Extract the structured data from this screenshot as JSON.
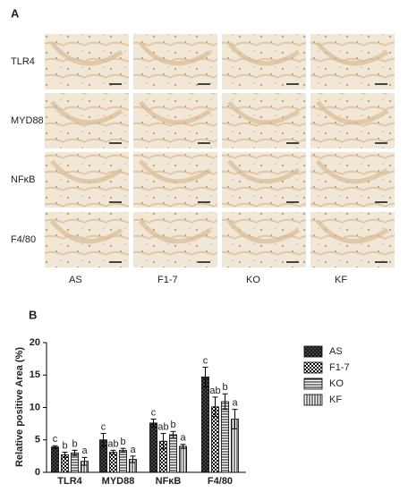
{
  "panel_labels": [
    "A",
    "B"
  ],
  "micrographs": {
    "row_labels": [
      "TLR4",
      "MYD88",
      "NFκB",
      "F4/80"
    ],
    "column_labels": [
      "AS",
      "F1-7",
      "KO",
      "KF"
    ]
  },
  "chart_data": {
    "type": "bar",
    "y_label": "Relative positive Area (%)",
    "categories": [
      "TLR4",
      "MYD88",
      "NFκB",
      "F4/80"
    ],
    "ylim": [
      0,
      20
    ],
    "yticks": [
      0,
      5,
      10,
      15,
      20
    ],
    "grid": false,
    "legend": "right",
    "series": [
      {
        "name": "AS",
        "color": "#000000",
        "pattern": "crosshatch",
        "values": [
          3.9,
          5.0,
          7.6,
          14.7
        ],
        "errors": [
          0.2,
          1.0,
          0.6,
          1.5
        ],
        "labels": [
          "c",
          "c",
          "c",
          "c"
        ]
      },
      {
        "name": "F1-7",
        "color": "#000000",
        "pattern": "checker",
        "values": [
          2.7,
          3.1,
          4.8,
          10.1
        ],
        "errors": [
          0.4,
          0.3,
          1.2,
          1.5
        ],
        "labels": [
          "b",
          "ab",
          "ab",
          "ab"
        ]
      },
      {
        "name": "KO",
        "color": "#000000",
        "pattern": "horizontal",
        "values": [
          3.0,
          3.4,
          5.8,
          10.9
        ],
        "errors": [
          0.4,
          0.3,
          0.5,
          1.2
        ],
        "labels": [
          "b",
          "b",
          "b",
          "b"
        ]
      },
      {
        "name": "KF",
        "color": "#000000",
        "pattern": "vertical",
        "values": [
          1.7,
          2.0,
          4.0,
          8.2
        ],
        "errors": [
          0.6,
          0.5,
          0.3,
          1.5
        ],
        "labels": [
          "a",
          "a",
          "a",
          "a"
        ]
      }
    ]
  }
}
